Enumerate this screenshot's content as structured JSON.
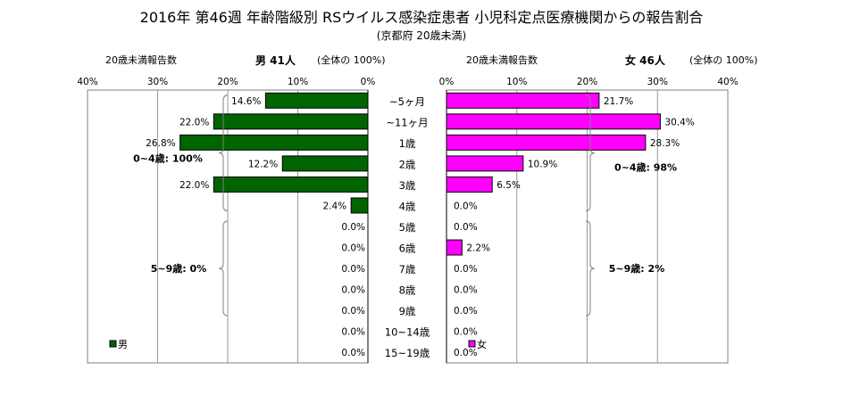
{
  "title": "2016年 第46週 年齢階級別 RSウイルス感染症患者 小児科定点医療機関からの報告割合",
  "subtitle": "(京都府 20歳未満)",
  "colors": {
    "male": "#006400",
    "female": "#ff00ff",
    "border": "#000000",
    "grid": "#808080"
  },
  "chart_data": [
    {
      "type": "bar",
      "orientation": "horizontal",
      "direction": "right-to-left",
      "header_left": "20歳未満報告数",
      "header_title": "男  41人",
      "header_total": "(全体の  100%)",
      "ticks": [
        "40%",
        "30%",
        "20%",
        "10%",
        "0%"
      ],
      "xlim": [
        0,
        40
      ],
      "grid": "vertical",
      "categories": [
        "~5ヶ月",
        "~11ヶ月",
        "1歳",
        "2歳",
        "3歳",
        "4歳",
        "5歳",
        "6歳",
        "7歳",
        "8歳",
        "9歳",
        "10~14歳",
        "15~19歳"
      ],
      "series": [
        {
          "name": "男",
          "values": [
            14.6,
            22.0,
            26.8,
            12.2,
            22.0,
            2.4,
            0.0,
            0.0,
            0.0,
            0.0,
            0.0,
            0.0,
            0.0
          ],
          "labels": [
            "14.6%",
            "22.0%",
            "26.8%",
            "12.2%",
            "22.0%",
            "2.4%",
            "0.0%",
            "0.0%",
            "0.0%",
            "0.0%",
            "0.0%",
            "0.0%",
            "0.0%"
          ]
        }
      ],
      "group_labels": [
        "0~4歳: 100%",
        "5~9歳: 0%"
      ],
      "legend": "bottom-left"
    },
    {
      "type": "bar",
      "orientation": "horizontal",
      "direction": "left-to-right",
      "header_left": "20歳未満報告数",
      "header_title": "女  46人",
      "header_total": "(全体の  100%)",
      "ticks": [
        "0%",
        "10%",
        "20%",
        "30%",
        "40%"
      ],
      "xlim": [
        0,
        40
      ],
      "grid": "vertical",
      "categories": [
        "~5ヶ月",
        "~11ヶ月",
        "1歳",
        "2歳",
        "3歳",
        "4歳",
        "5歳",
        "6歳",
        "7歳",
        "8歳",
        "9歳",
        "10~14歳",
        "15~19歳"
      ],
      "series": [
        {
          "name": "女",
          "values": [
            21.7,
            30.4,
            28.3,
            10.9,
            6.5,
            0.0,
            0.0,
            2.2,
            0.0,
            0.0,
            0.0,
            0.0,
            0.0
          ],
          "labels": [
            "21.7%",
            "30.4%",
            "28.3%",
            "10.9%",
            "6.5%",
            "0.0%",
            "0.0%",
            "2.2%",
            "0.0%",
            "0.0%",
            "0.0%",
            "0.0%",
            "0.0%"
          ]
        }
      ],
      "group_labels": [
        "0~4歳: 98%",
        "5~9歳: 2%"
      ],
      "legend": "bottom-left"
    }
  ]
}
